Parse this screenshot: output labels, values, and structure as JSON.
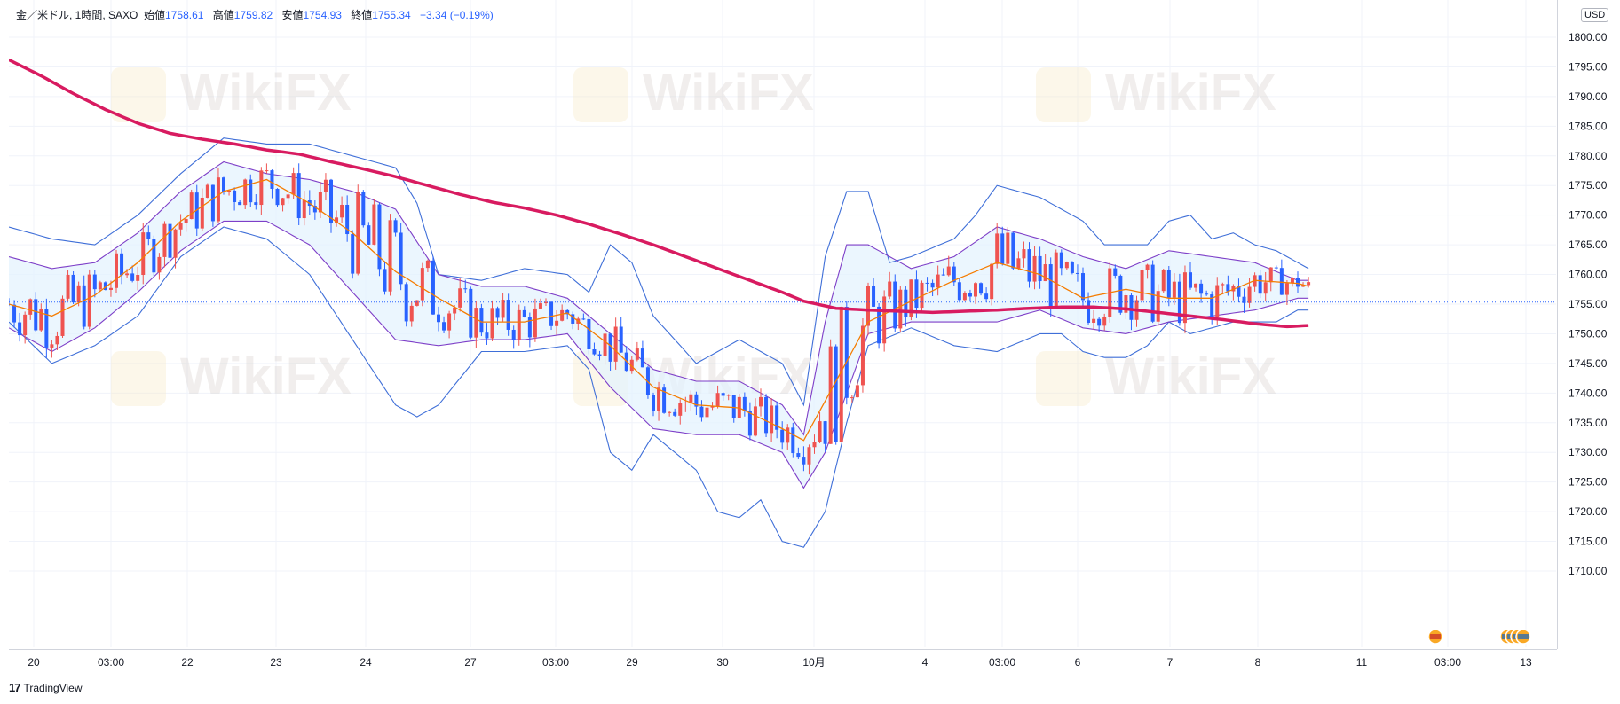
{
  "header": {
    "symbol": "金／米ドル, 1時間, SAXO",
    "open_label": "始値",
    "open_value": "1758.61",
    "high_label": "高値",
    "high_value": "1759.82",
    "low_label": "安値",
    "low_value": "1754.93",
    "close_label": "終値",
    "close_value": "1755.34",
    "change": "−3.34 (−0.19%)"
  },
  "currency_badge": "USD",
  "branding": {
    "logo_mark": "17",
    "logo_text": "TradingView",
    "watermark": "WikiFX"
  },
  "colors": {
    "up_candle": "#ef5350",
    "down_candle": "#2962ff",
    "ma_long": "#d81b60",
    "ma_mid": "#f57c00",
    "bb_outer": "#3f6fd8",
    "bb_inner": "#7e3fc8",
    "bb_fill": "#e3f2fd",
    "last_price_line": "#2962ff",
    "grid": "#f0f3fa"
  },
  "chart_data": {
    "type": "candlestick",
    "title": "金／米ドル, 1時間, SAXO",
    "y_ticks": [
      "1800.00",
      "1795.00",
      "1790.00",
      "1785.00",
      "1780.00",
      "1775.00",
      "1770.00",
      "1765.00",
      "1760.00",
      "1755.00",
      "1750.00",
      "1745.00",
      "1740.00",
      "1735.00",
      "1730.00",
      "1725.00",
      "1720.00",
      "1715.00",
      "1710.00"
    ],
    "x_ticks": [
      "20",
      "03:00",
      "22",
      "23",
      "24",
      "27",
      "03:00",
      "29",
      "30",
      "10月",
      "4",
      "03:00",
      "6",
      "7",
      "8",
      "11",
      "03:00",
      "13"
    ],
    "ylim": [
      1706,
      1804
    ],
    "last_price": 1755.34,
    "grid": true,
    "legend": "none",
    "ma_long": [
      [
        0,
        1796.2
      ],
      [
        3,
        1793.5
      ],
      [
        6,
        1790.5
      ],
      [
        9,
        1787.8
      ],
      [
        12,
        1785.5
      ],
      [
        15,
        1783.8
      ],
      [
        18,
        1782.8
      ],
      [
        21,
        1782
      ],
      [
        24,
        1781
      ],
      [
        27,
        1780.3
      ],
      [
        30,
        1779
      ],
      [
        33,
        1777.8
      ],
      [
        36,
        1776.5
      ],
      [
        39,
        1775
      ],
      [
        42,
        1773.5
      ],
      [
        45,
        1772.2
      ],
      [
        48,
        1771.2
      ],
      [
        51,
        1770
      ],
      [
        54,
        1768.5
      ],
      [
        57,
        1766.8
      ],
      [
        60,
        1765
      ],
      [
        63,
        1763
      ],
      [
        66,
        1761
      ],
      [
        69,
        1759
      ],
      [
        72,
        1757
      ],
      [
        74,
        1755.5
      ],
      [
        77,
        1754.3
      ],
      [
        80,
        1754
      ],
      [
        83,
        1753.8
      ],
      [
        86,
        1753.6
      ],
      [
        89,
        1753.8
      ],
      [
        92,
        1754
      ],
      [
        95,
        1754.3
      ],
      [
        98,
        1754.5
      ],
      [
        101,
        1754.5
      ],
      [
        104,
        1754.2
      ],
      [
        107,
        1753.6
      ],
      [
        110,
        1753
      ],
      [
        113,
        1752.4
      ],
      [
        116,
        1751.7
      ],
      [
        119,
        1751.2
      ],
      [
        121,
        1751.4
      ]
    ],
    "ma_mid": [
      [
        0,
        1755
      ],
      [
        4,
        1753
      ],
      [
        8,
        1756.5
      ],
      [
        12,
        1762
      ],
      [
        16,
        1769
      ],
      [
        20,
        1774
      ],
      [
        24,
        1776
      ],
      [
        28,
        1772
      ],
      [
        32,
        1767
      ],
      [
        36,
        1760.5
      ],
      [
        40,
        1756
      ],
      [
        44,
        1752
      ],
      [
        48,
        1752
      ],
      [
        52,
        1753.5
      ],
      [
        56,
        1748
      ],
      [
        60,
        1741
      ],
      [
        64,
        1738
      ],
      [
        68,
        1737.5
      ],
      [
        72,
        1734
      ],
      [
        74,
        1732
      ],
      [
        77,
        1742
      ],
      [
        80,
        1752
      ],
      [
        84,
        1755.5
      ],
      [
        88,
        1759
      ],
      [
        92,
        1762
      ],
      [
        96,
        1760
      ],
      [
        100,
        1756
      ],
      [
        104,
        1757.5
      ],
      [
        108,
        1756
      ],
      [
        112,
        1756
      ],
      [
        116,
        1759
      ],
      [
        120,
        1758.5
      ],
      [
        121,
        1758
      ]
    ],
    "bb_upper": [
      [
        0,
        1768
      ],
      [
        4,
        1766
      ],
      [
        8,
        1765
      ],
      [
        12,
        1770
      ],
      [
        16,
        1777
      ],
      [
        20,
        1783
      ],
      [
        24,
        1782
      ],
      [
        28,
        1782
      ],
      [
        32,
        1780
      ],
      [
        36,
        1778
      ],
      [
        38,
        1772
      ],
      [
        40,
        1760
      ],
      [
        44,
        1759
      ],
      [
        48,
        1761
      ],
      [
        52,
        1760
      ],
      [
        54,
        1757
      ],
      [
        56,
        1765
      ],
      [
        58,
        1762
      ],
      [
        60,
        1753
      ],
      [
        64,
        1745
      ],
      [
        68,
        1749
      ],
      [
        72,
        1745
      ],
      [
        74,
        1738
      ],
      [
        76,
        1763
      ],
      [
        78,
        1774
      ],
      [
        80,
        1774
      ],
      [
        82,
        1762
      ],
      [
        84,
        1763
      ],
      [
        88,
        1766
      ],
      [
        90,
        1770
      ],
      [
        92,
        1775
      ],
      [
        96,
        1773
      ],
      [
        100,
        1769
      ],
      [
        102,
        1765
      ],
      [
        106,
        1765
      ],
      [
        108,
        1769
      ],
      [
        110,
        1770
      ],
      [
        112,
        1766
      ],
      [
        114,
        1767
      ],
      [
        116,
        1765
      ],
      [
        118,
        1764
      ],
      [
        120,
        1762
      ],
      [
        121,
        1761
      ]
    ],
    "bb_lower": [
      [
        0,
        1752
      ],
      [
        4,
        1745
      ],
      [
        8,
        1748
      ],
      [
        12,
        1753
      ],
      [
        16,
        1763
      ],
      [
        20,
        1768
      ],
      [
        24,
        1766
      ],
      [
        28,
        1760
      ],
      [
        32,
        1749
      ],
      [
        36,
        1738
      ],
      [
        38,
        1736
      ],
      [
        40,
        1738
      ],
      [
        44,
        1747
      ],
      [
        48,
        1747
      ],
      [
        52,
        1748
      ],
      [
        54,
        1744
      ],
      [
        56,
        1730
      ],
      [
        58,
        1727
      ],
      [
        60,
        1733
      ],
      [
        64,
        1727
      ],
      [
        66,
        1720
      ],
      [
        68,
        1719
      ],
      [
        70,
        1722
      ],
      [
        72,
        1715
      ],
      [
        74,
        1714
      ],
      [
        76,
        1720
      ],
      [
        78,
        1735
      ],
      [
        80,
        1748
      ],
      [
        84,
        1751
      ],
      [
        88,
        1748
      ],
      [
        92,
        1747
      ],
      [
        96,
        1750
      ],
      [
        98,
        1750
      ],
      [
        100,
        1747
      ],
      [
        102,
        1746
      ],
      [
        104,
        1746
      ],
      [
        106,
        1748
      ],
      [
        108,
        1752
      ],
      [
        110,
        1750
      ],
      [
        114,
        1752
      ],
      [
        116,
        1752
      ],
      [
        118,
        1752
      ],
      [
        120,
        1754
      ],
      [
        121,
        1754
      ]
    ],
    "bb_upper_inner": [
      [
        0,
        1763
      ],
      [
        4,
        1761
      ],
      [
        8,
        1762
      ],
      [
        12,
        1767
      ],
      [
        16,
        1774
      ],
      [
        20,
        1779
      ],
      [
        24,
        1777
      ],
      [
        28,
        1776
      ],
      [
        32,
        1774
      ],
      [
        36,
        1771
      ],
      [
        40,
        1760
      ],
      [
        44,
        1758
      ],
      [
        48,
        1758
      ],
      [
        52,
        1756
      ],
      [
        56,
        1750
      ],
      [
        60,
        1744
      ],
      [
        64,
        1742
      ],
      [
        68,
        1742
      ],
      [
        72,
        1738
      ],
      [
        74,
        1733
      ],
      [
        76,
        1752
      ],
      [
        78,
        1765
      ],
      [
        80,
        1765
      ],
      [
        84,
        1761
      ],
      [
        88,
        1763
      ],
      [
        92,
        1768
      ],
      [
        96,
        1766
      ],
      [
        100,
        1763
      ],
      [
        104,
        1761
      ],
      [
        108,
        1764
      ],
      [
        112,
        1763
      ],
      [
        116,
        1762
      ],
      [
        120,
        1759
      ],
      [
        121,
        1759
      ]
    ],
    "bb_lower_inner": [
      [
        0,
        1751
      ],
      [
        4,
        1747
      ],
      [
        8,
        1751
      ],
      [
        12,
        1757
      ],
      [
        16,
        1764
      ],
      [
        20,
        1769
      ],
      [
        24,
        1769
      ],
      [
        28,
        1765
      ],
      [
        32,
        1757
      ],
      [
        36,
        1749
      ],
      [
        40,
        1748
      ],
      [
        44,
        1749
      ],
      [
        48,
        1749
      ],
      [
        52,
        1750
      ],
      [
        56,
        1741
      ],
      [
        60,
        1734
      ],
      [
        64,
        1733
      ],
      [
        68,
        1733
      ],
      [
        72,
        1730
      ],
      [
        74,
        1724
      ],
      [
        76,
        1730
      ],
      [
        78,
        1740
      ],
      [
        80,
        1750
      ],
      [
        84,
        1752
      ],
      [
        88,
        1752
      ],
      [
        92,
        1752
      ],
      [
        96,
        1754
      ],
      [
        100,
        1751
      ],
      [
        104,
        1750
      ],
      [
        108,
        1752
      ],
      [
        112,
        1753
      ],
      [
        116,
        1754
      ],
      [
        120,
        1756
      ],
      [
        121,
        1756
      ]
    ]
  }
}
